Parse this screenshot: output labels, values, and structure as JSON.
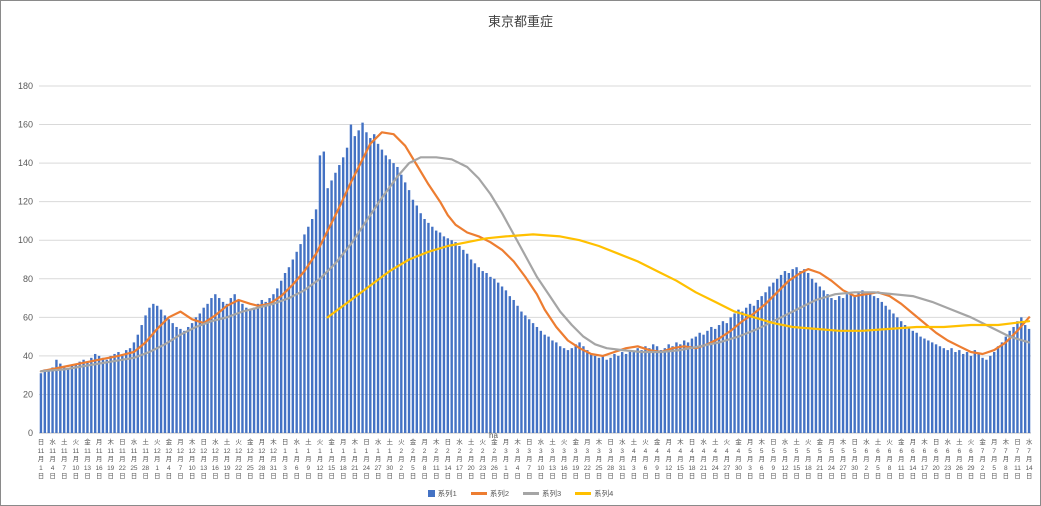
{
  "title": "東京都重症",
  "annotation": "ha",
  "colors": {
    "bar": "#4472C4",
    "line_avg7": "#ED7D31",
    "line_avg14": "#A5A5A5",
    "line_avg28": "#FFC000",
    "grid": "#D9D9D9",
    "axis": "#BFBFBF",
    "text": "#595959"
  },
  "legend": [
    {
      "label": "系列1",
      "color": "#4472C4",
      "type": "bar"
    },
    {
      "label": "系列2",
      "color": "#ED7D31",
      "type": "line"
    },
    {
      "label": "系列3",
      "color": "#A5A5A5",
      "type": "line"
    },
    {
      "label": "系列4",
      "color": "#FFC000",
      "type": "line"
    }
  ],
  "y_axis": {
    "min": 0,
    "max": 180,
    "step": 20
  },
  "x_axis": {
    "tick_interval_days": 3,
    "month_suffix": "月",
    "day_suffix": "日",
    "ticks": [
      [
        "日",
        11,
        1
      ],
      [
        "水",
        11,
        4
      ],
      [
        "土",
        11,
        7
      ],
      [
        "火",
        11,
        10
      ],
      [
        "金",
        11,
        13
      ],
      [
        "月",
        11,
        16
      ],
      [
        "木",
        11,
        19
      ],
      [
        "日",
        11,
        22
      ],
      [
        "水",
        11,
        25
      ],
      [
        "土",
        11,
        28
      ],
      [
        "火",
        12,
        1
      ],
      [
        "金",
        12,
        4
      ],
      [
        "月",
        12,
        7
      ],
      [
        "木",
        12,
        10
      ],
      [
        "日",
        12,
        13
      ],
      [
        "水",
        12,
        16
      ],
      [
        "土",
        12,
        19
      ],
      [
        "火",
        12,
        22
      ],
      [
        "金",
        12,
        25
      ],
      [
        "月",
        12,
        28
      ],
      [
        "木",
        12,
        31
      ],
      [
        "日",
        1,
        3
      ],
      [
        "水",
        1,
        6
      ],
      [
        "土",
        1,
        9
      ],
      [
        "火",
        1,
        12
      ],
      [
        "金",
        1,
        15
      ],
      [
        "月",
        1,
        18
      ],
      [
        "木",
        1,
        21
      ],
      [
        "日",
        1,
        24
      ],
      [
        "水",
        1,
        27
      ],
      [
        "土",
        1,
        30
      ],
      [
        "火",
        2,
        2
      ],
      [
        "金",
        2,
        5
      ],
      [
        "月",
        2,
        8
      ],
      [
        "木",
        2,
        11
      ],
      [
        "日",
        2,
        14
      ],
      [
        "水",
        2,
        17
      ],
      [
        "土",
        2,
        20
      ],
      [
        "火",
        2,
        23
      ],
      [
        "金",
        2,
        26
      ],
      [
        "月",
        3,
        1
      ],
      [
        "木",
        3,
        4
      ],
      [
        "日",
        3,
        7
      ],
      [
        "水",
        3,
        10
      ],
      [
        "土",
        3,
        13
      ],
      [
        "火",
        3,
        16
      ],
      [
        "金",
        3,
        19
      ],
      [
        "月",
        3,
        22
      ],
      [
        "木",
        3,
        25
      ],
      [
        "日",
        3,
        28
      ],
      [
        "水",
        3,
        31
      ],
      [
        "土",
        4,
        3
      ],
      [
        "火",
        4,
        6
      ],
      [
        "金",
        4,
        9
      ],
      [
        "月",
        4,
        12
      ],
      [
        "木",
        4,
        15
      ],
      [
        "日",
        4,
        18
      ],
      [
        "水",
        4,
        21
      ],
      [
        "土",
        4,
        24
      ],
      [
        "火",
        4,
        27
      ],
      [
        "金",
        4,
        30
      ],
      [
        "月",
        5,
        3
      ],
      [
        "木",
        5,
        6
      ],
      [
        "日",
        5,
        9
      ],
      [
        "水",
        5,
        12
      ],
      [
        "土",
        5,
        15
      ],
      [
        "火",
        5,
        18
      ],
      [
        "金",
        5,
        21
      ],
      [
        "月",
        5,
        24
      ],
      [
        "木",
        5,
        27
      ],
      [
        "日",
        5,
        30
      ],
      [
        "水",
        6,
        2
      ],
      [
        "土",
        6,
        5
      ],
      [
        "火",
        6,
        8
      ],
      [
        "金",
        6,
        11
      ],
      [
        "月",
        6,
        14
      ],
      [
        "木",
        6,
        17
      ],
      [
        "日",
        6,
        20
      ],
      [
        "水",
        6,
        23
      ],
      [
        "土",
        6,
        26
      ],
      [
        "火",
        6,
        29
      ],
      [
        "金",
        7,
        2
      ],
      [
        "月",
        7,
        5
      ],
      [
        "木",
        7,
        8
      ],
      [
        "日",
        7,
        11
      ],
      [
        "水",
        7,
        14
      ]
    ]
  },
  "chart_data": {
    "type": "bar",
    "title": "東京都重症",
    "xlabel": "",
    "ylabel": "",
    "ylim": [
      0,
      180
    ],
    "grid": true,
    "legend_position": "bottom",
    "bars": {
      "name": "系列1",
      "color": "#4472C4",
      "values": [
        31,
        33,
        32,
        34,
        38,
        36,
        34,
        33,
        35,
        36,
        37,
        38,
        37,
        39,
        41,
        40,
        39,
        38,
        40,
        41,
        42,
        40,
        43,
        44,
        47,
        51,
        56,
        61,
        65,
        67,
        66,
        64,
        61,
        59,
        57,
        55,
        54,
        53,
        55,
        57,
        60,
        62,
        65,
        67,
        70,
        72,
        70,
        68,
        67,
        70,
        72,
        69,
        67,
        65,
        64,
        65,
        67,
        69,
        68,
        70,
        72,
        75,
        79,
        83,
        86,
        90,
        94,
        98,
        103,
        107,
        111,
        116,
        144,
        146,
        127,
        131,
        135,
        139,
        143,
        148,
        160,
        154,
        157,
        161,
        156,
        153,
        155,
        150,
        147,
        144,
        142,
        140,
        138,
        134,
        130,
        126,
        121,
        118,
        114,
        111,
        109,
        107,
        105,
        104,
        102,
        101,
        100,
        99,
        97,
        95,
        93,
        90,
        88,
        86,
        84,
        83,
        81,
        80,
        78,
        76,
        74,
        71,
        69,
        66,
        63,
        61,
        59,
        57,
        55,
        53,
        51,
        50,
        48,
        47,
        45,
        44,
        43,
        44,
        46,
        47,
        45,
        43,
        41,
        40,
        39,
        40,
        38,
        39,
        41,
        40,
        42,
        41,
        43,
        42,
        44,
        43,
        45,
        44,
        46,
        45,
        43,
        44,
        46,
        45,
        47,
        46,
        48,
        47,
        49,
        50,
        52,
        51,
        53,
        55,
        54,
        56,
        58,
        57,
        60,
        62,
        64,
        63,
        65,
        67,
        66,
        69,
        71,
        73,
        76,
        78,
        80,
        82,
        84,
        83,
        85,
        86,
        84,
        85,
        83,
        80,
        78,
        76,
        74,
        72,
        70,
        69,
        71,
        70,
        72,
        73,
        71,
        73,
        74,
        72,
        73,
        71,
        70,
        68,
        66,
        64,
        62,
        60,
        58,
        56,
        55,
        53,
        52,
        50,
        49,
        48,
        47,
        46,
        45,
        44,
        43,
        44,
        42,
        43,
        41,
        42,
        40,
        43,
        41,
        39,
        38,
        40,
        42,
        45,
        47,
        50,
        53,
        55,
        58,
        60,
        56,
        54
      ]
    },
    "lines": [
      {
        "name": "系列2",
        "color": "#ED7D31",
        "points": [
          [
            0,
            32
          ],
          [
            5,
            34
          ],
          [
            10,
            36
          ],
          [
            15,
            38
          ],
          [
            20,
            40
          ],
          [
            24,
            42
          ],
          [
            27,
            47
          ],
          [
            30,
            54
          ],
          [
            33,
            60
          ],
          [
            36,
            63
          ],
          [
            39,
            59
          ],
          [
            42,
            57
          ],
          [
            45,
            61
          ],
          [
            48,
            66
          ],
          [
            51,
            69
          ],
          [
            54,
            67
          ],
          [
            56,
            66
          ],
          [
            59,
            67
          ],
          [
            62,
            71
          ],
          [
            65,
            77
          ],
          [
            68,
            84
          ],
          [
            71,
            93
          ],
          [
            74,
            105
          ],
          [
            77,
            117
          ],
          [
            80,
            130
          ],
          [
            83,
            142
          ],
          [
            85,
            150
          ],
          [
            88,
            156
          ],
          [
            91,
            155
          ],
          [
            94,
            149
          ],
          [
            97,
            139
          ],
          [
            100,
            129
          ],
          [
            103,
            120
          ],
          [
            105,
            113
          ],
          [
            107,
            108
          ],
          [
            110,
            104
          ],
          [
            113,
            102
          ],
          [
            116,
            99
          ],
          [
            119,
            95
          ],
          [
            122,
            89
          ],
          [
            125,
            81
          ],
          [
            128,
            72
          ],
          [
            130,
            64
          ],
          [
            133,
            55
          ],
          [
            136,
            48
          ],
          [
            139,
            44
          ],
          [
            142,
            41
          ],
          [
            145,
            40
          ],
          [
            148,
            42
          ],
          [
            151,
            44
          ],
          [
            154,
            45
          ],
          [
            157,
            43
          ],
          [
            160,
            42
          ],
          [
            163,
            44
          ],
          [
            166,
            45
          ],
          [
            169,
            44
          ],
          [
            172,
            46
          ],
          [
            175,
            49
          ],
          [
            178,
            53
          ],
          [
            181,
            58
          ],
          [
            184,
            62
          ],
          [
            187,
            67
          ],
          [
            190,
            73
          ],
          [
            193,
            79
          ],
          [
            196,
            83
          ],
          [
            198,
            85
          ],
          [
            201,
            83
          ],
          [
            204,
            79
          ],
          [
            207,
            74
          ],
          [
            210,
            71
          ],
          [
            213,
            72
          ],
          [
            216,
            73
          ],
          [
            219,
            71
          ],
          [
            222,
            67
          ],
          [
            225,
            62
          ],
          [
            228,
            57
          ],
          [
            231,
            52
          ],
          [
            234,
            48
          ],
          [
            237,
            45
          ],
          [
            240,
            42
          ],
          [
            243,
            41
          ],
          [
            246,
            43
          ],
          [
            249,
            47
          ],
          [
            252,
            53
          ],
          [
            255,
            60
          ]
        ]
      },
      {
        "name": "系列3",
        "color": "#A5A5A5",
        "points": [
          [
            0,
            32
          ],
          [
            6,
            33
          ],
          [
            12,
            35
          ],
          [
            18,
            37
          ],
          [
            24,
            39
          ],
          [
            28,
            42
          ],
          [
            32,
            46
          ],
          [
            36,
            51
          ],
          [
            40,
            55
          ],
          [
            44,
            58
          ],
          [
            48,
            60
          ],
          [
            52,
            63
          ],
          [
            56,
            65
          ],
          [
            60,
            67
          ],
          [
            64,
            70
          ],
          [
            68,
            74
          ],
          [
            72,
            80
          ],
          [
            76,
            88
          ],
          [
            80,
            98
          ],
          [
            84,
            110
          ],
          [
            88,
            122
          ],
          [
            92,
            133
          ],
          [
            95,
            140
          ],
          [
            98,
            143
          ],
          [
            102,
            143
          ],
          [
            106,
            142
          ],
          [
            110,
            138
          ],
          [
            113,
            132
          ],
          [
            116,
            124
          ],
          [
            119,
            114
          ],
          [
            122,
            103
          ],
          [
            125,
            92
          ],
          [
            128,
            81
          ],
          [
            131,
            72
          ],
          [
            134,
            63
          ],
          [
            137,
            56
          ],
          [
            140,
            50
          ],
          [
            143,
            46
          ],
          [
            146,
            44
          ],
          [
            150,
            43
          ],
          [
            155,
            42
          ],
          [
            160,
            42
          ],
          [
            165,
            43
          ],
          [
            170,
            45
          ],
          [
            175,
            47
          ],
          [
            180,
            50
          ],
          [
            185,
            54
          ],
          [
            190,
            59
          ],
          [
            195,
            64
          ],
          [
            200,
            69
          ],
          [
            205,
            72
          ],
          [
            210,
            73
          ],
          [
            215,
            73
          ],
          [
            220,
            72
          ],
          [
            225,
            71
          ],
          [
            230,
            68
          ],
          [
            235,
            64
          ],
          [
            240,
            60
          ],
          [
            245,
            55
          ],
          [
            250,
            50
          ],
          [
            255,
            47
          ]
        ]
      },
      {
        "name": "系列4",
        "color": "#FFC000",
        "points": [
          [
            74,
            60
          ],
          [
            78,
            66
          ],
          [
            82,
            72
          ],
          [
            86,
            78
          ],
          [
            90,
            84
          ],
          [
            95,
            90
          ],
          [
            100,
            94
          ],
          [
            105,
            97
          ],
          [
            110,
            99
          ],
          [
            115,
            101
          ],
          [
            120,
            102
          ],
          [
            127,
            103
          ],
          [
            134,
            102
          ],
          [
            139,
            100
          ],
          [
            144,
            97
          ],
          [
            149,
            93
          ],
          [
            154,
            89
          ],
          [
            159,
            84
          ],
          [
            164,
            79
          ],
          [
            169,
            73
          ],
          [
            174,
            68
          ],
          [
            179,
            63
          ],
          [
            184,
            60
          ],
          [
            189,
            57
          ],
          [
            194,
            55
          ],
          [
            200,
            54
          ],
          [
            206,
            53
          ],
          [
            212,
            53
          ],
          [
            219,
            54
          ],
          [
            226,
            55
          ],
          [
            233,
            55
          ],
          [
            240,
            56
          ],
          [
            247,
            56
          ],
          [
            255,
            58
          ]
        ]
      }
    ]
  }
}
